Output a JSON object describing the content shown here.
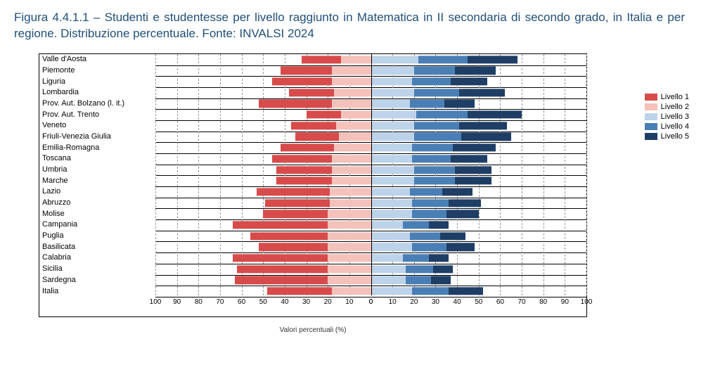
{
  "title": "Figura 4.4.1.1 – Studenti e studentesse per livello raggiunto in Matematica in II secondaria di secondo grado, in Italia e per regione. Distribuzione percentuale. Fonte: INVALSI 2024",
  "chart": {
    "type": "diverging-stacked-bar",
    "x_axis_label": "Valori percentuali (%)",
    "x_ticks_left": [
      100,
      90,
      80,
      70,
      60,
      50,
      40,
      30,
      20,
      10,
      0
    ],
    "x_ticks_right": [
      0,
      10,
      20,
      30,
      40,
      50,
      60,
      70,
      80,
      90,
      100
    ],
    "xlim": 100,
    "grid_color": "#999999",
    "border_color": "#000000",
    "background_color": "#ffffff",
    "label_fontsize": 11,
    "tick_fontsize": 10,
    "levels": [
      {
        "key": "l1",
        "name": "Livello 1",
        "color": "#d84b4b",
        "side": "left"
      },
      {
        "key": "l2",
        "name": "Livello 2",
        "color": "#f4c1bb",
        "side": "left"
      },
      {
        "key": "l3",
        "name": "Livello 3",
        "color": "#bcd3ea",
        "side": "right"
      },
      {
        "key": "l4",
        "name": "Livello 4",
        "color": "#4a7fb5",
        "side": "right"
      },
      {
        "key": "l5",
        "name": "Livello 5",
        "color": "#1e3e66",
        "side": "right"
      }
    ],
    "regions": [
      {
        "name": "Valle d'Aosta",
        "l1": 18,
        "l2": 14,
        "l3": 22,
        "l4": 23,
        "l5": 23
      },
      {
        "name": "Piemonte",
        "l1": 24,
        "l2": 18,
        "l3": 20,
        "l4": 19,
        "l5": 19
      },
      {
        "name": "Liguria",
        "l1": 28,
        "l2": 18,
        "l3": 19,
        "l4": 18,
        "l5": 17
      },
      {
        "name": "Lombardia",
        "l1": 21,
        "l2": 17,
        "l3": 20,
        "l4": 21,
        "l5": 21
      },
      {
        "name": "Prov. Aut. Bolzano (l. it.)",
        "l1": 34,
        "l2": 18,
        "l3": 18,
        "l4": 16,
        "l5": 14
      },
      {
        "name": "Prov. Aut. Trento",
        "l1": 16,
        "l2": 14,
        "l3": 21,
        "l4": 24,
        "l5": 25
      },
      {
        "name": "Veneto",
        "l1": 21,
        "l2": 16,
        "l3": 20,
        "l4": 21,
        "l5": 22
      },
      {
        "name": "Friuli-Venezia Giulia",
        "l1": 20,
        "l2": 15,
        "l3": 20,
        "l4": 22,
        "l5": 23
      },
      {
        "name": "Emilia-Romagna",
        "l1": 25,
        "l2": 17,
        "l3": 19,
        "l4": 19,
        "l5": 20
      },
      {
        "name": "Toscana",
        "l1": 28,
        "l2": 18,
        "l3": 19,
        "l4": 18,
        "l5": 17
      },
      {
        "name": "Umbria",
        "l1": 26,
        "l2": 18,
        "l3": 20,
        "l4": 19,
        "l5": 17
      },
      {
        "name": "Marche",
        "l1": 26,
        "l2": 18,
        "l3": 20,
        "l4": 19,
        "l5": 17
      },
      {
        "name": "Lazio",
        "l1": 34,
        "l2": 19,
        "l3": 18,
        "l4": 15,
        "l5": 14
      },
      {
        "name": "Abruzzo",
        "l1": 30,
        "l2": 19,
        "l3": 19,
        "l4": 17,
        "l5": 15
      },
      {
        "name": "Molise",
        "l1": 30,
        "l2": 20,
        "l3": 19,
        "l4": 16,
        "l5": 15
      },
      {
        "name": "Campania",
        "l1": 44,
        "l2": 20,
        "l3": 15,
        "l4": 12,
        "l5": 9
      },
      {
        "name": "Puglia",
        "l1": 36,
        "l2": 20,
        "l3": 18,
        "l4": 14,
        "l5": 12
      },
      {
        "name": "Basilicata",
        "l1": 32,
        "l2": 20,
        "l3": 19,
        "l4": 16,
        "l5": 13
      },
      {
        "name": "Calabria",
        "l1": 44,
        "l2": 20,
        "l3": 15,
        "l4": 12,
        "l5": 9
      },
      {
        "name": "Sicilia",
        "l1": 42,
        "l2": 20,
        "l3": 16,
        "l4": 13,
        "l5": 9
      },
      {
        "name": "Sardegna",
        "l1": 43,
        "l2": 20,
        "l3": 16,
        "l4": 12,
        "l5": 9
      },
      {
        "name": "Italia",
        "l1": 30,
        "l2": 18,
        "l3": 19,
        "l4": 17,
        "l5": 16
      }
    ]
  }
}
